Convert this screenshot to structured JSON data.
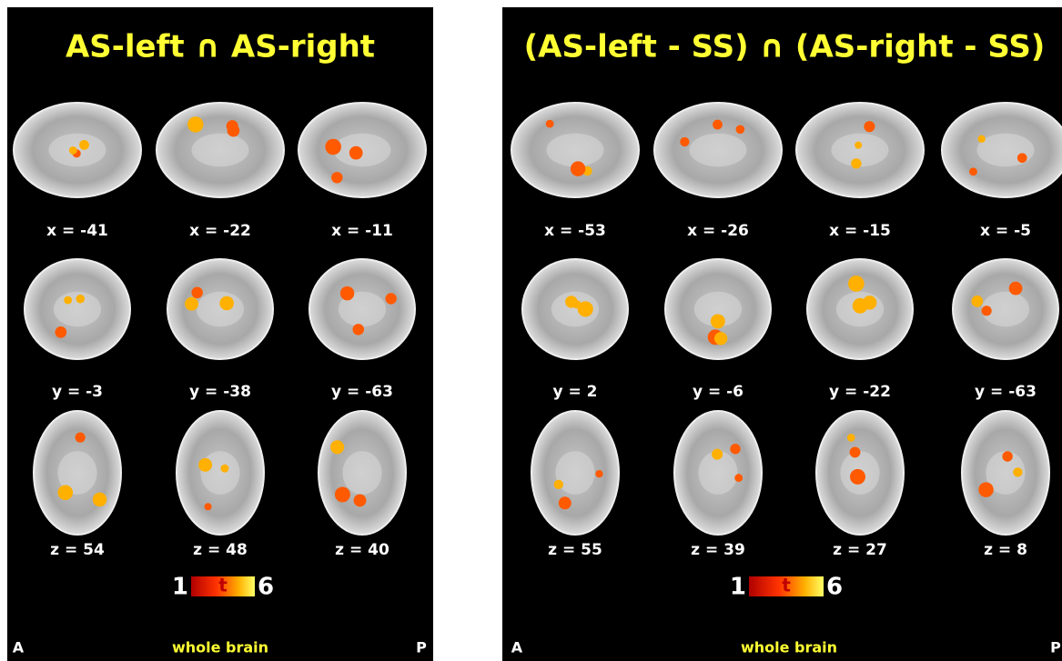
{
  "panels": [
    {
      "title": "AS-left ∩ AS-right",
      "rows": [
        [
          "x = -41",
          "x = -22",
          "x = -11"
        ],
        [
          "y = -3",
          "y = -38",
          "y = -63"
        ],
        [
          "z = 54",
          "z = 48",
          "z = 40"
        ]
      ],
      "colorbar": {
        "min": "1",
        "label": "t",
        "max": "6"
      },
      "footer": {
        "left": "A",
        "center": "whole brain",
        "right": "P"
      }
    },
    {
      "title": "(AS-left - SS) ∩ (AS-right - SS)",
      "rows": [
        [
          "x = -53",
          "x = -26",
          "x = -15",
          "x = -5"
        ],
        [
          "y = 2",
          "y = -6",
          "y = -22",
          "y = -63"
        ],
        [
          "z = 55",
          "z = 39",
          "z = 27",
          "z = 8"
        ]
      ],
      "colorbar": {
        "min": "1",
        "label": "t",
        "max": "6"
      },
      "footer": {
        "left": "A",
        "center": "whole brain",
        "right": "P"
      }
    }
  ]
}
